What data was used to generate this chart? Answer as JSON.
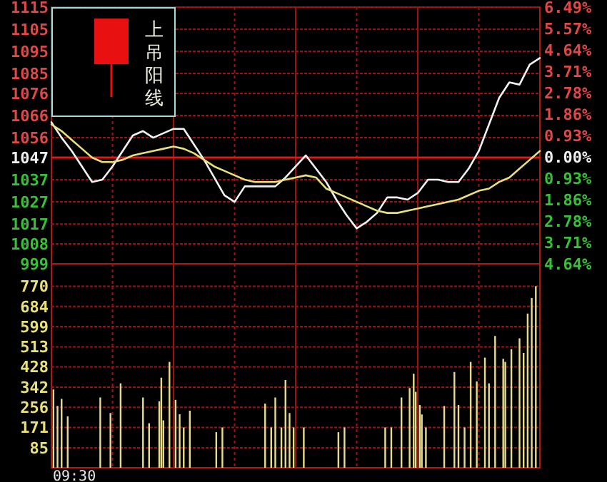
{
  "chart_data": [
    {
      "type": "line",
      "categories": [
        null,
        null,
        null,
        null,
        null,
        null,
        null,
        null,
        null,
        null,
        null,
        null,
        null,
        null,
        null,
        null,
        null,
        null,
        null,
        null,
        null,
        null,
        null,
        null,
        null,
        null,
        null,
        null,
        null,
        null,
        null,
        null,
        null,
        null,
        null,
        null,
        null,
        null,
        null,
        null,
        null,
        null,
        null,
        null,
        null,
        null,
        null,
        null,
        null
      ],
      "ylim": [
        999,
        1115
      ],
      "yticks": [
        1115,
        1105,
        1095,
        1085,
        1076,
        1066,
        1056,
        1047,
        1037,
        1027,
        1017,
        1008,
        999
      ],
      "y2lim": [
        -4.64,
        6.49
      ],
      "y2ticks": [
        {
          "value": 6.49,
          "label": "6.49%"
        },
        {
          "value": 5.57,
          "label": "5.57%"
        },
        {
          "value": 4.64,
          "label": "4.64%"
        },
        {
          "value": 3.71,
          "label": "3.71%"
        },
        {
          "value": 2.78,
          "label": "2.78%"
        },
        {
          "value": 1.86,
          "label": "1.86%"
        },
        {
          "value": 0.93,
          "label": "0.93%"
        },
        {
          "value": 0,
          "label": "0.00%"
        },
        {
          "value": -0.93,
          "label": "0.93%"
        },
        {
          "value": -1.86,
          "label": "1.86%"
        },
        {
          "value": -2.78,
          "label": "2.78%"
        },
        {
          "value": -3.71,
          "label": "3.71%"
        },
        {
          "value": -4.64,
          "label": "4.64%"
        }
      ],
      "grid": true,
      "ref_lines": [
        {
          "axis": "y",
          "value": 1047,
          "color": "#e01818"
        }
      ],
      "annotations": [
        "上吊阳线"
      ],
      "series": [
        {
          "color": "#f2f2f2",
          "values": [
            1063,
            1056,
            1050,
            1043,
            1036,
            1037,
            1043,
            1050,
            1057,
            1059,
            1056,
            1058,
            1060,
            1060,
            1053,
            1046,
            1038,
            1030,
            1027,
            1034,
            1034,
            1034,
            1034,
            1038,
            1043,
            1048,
            1042,
            1036,
            1028,
            1021,
            1015,
            1018,
            1022,
            1029,
            1029,
            1028,
            1031,
            1037,
            1037,
            1036,
            1036,
            1042,
            1050,
            1062,
            1074,
            1081,
            1080,
            1089,
            1092
          ]
        },
        {
          "color": "#e8e07a",
          "values": [
            1062,
            1059,
            1055,
            1051,
            1047,
            1045,
            1045,
            1046,
            1048,
            1049,
            1050,
            1051,
            1052,
            1051,
            1049,
            1046,
            1043,
            1041,
            1039,
            1037,
            1036,
            1036,
            1036,
            1037,
            1038,
            1039,
            1038,
            1033,
            1031,
            1029,
            1027,
            1025,
            1023,
            1022,
            1022,
            1023,
            1024,
            1025,
            1026,
            1027,
            1028,
            1030,
            1032,
            1033,
            1036,
            1038,
            1042,
            1046,
            1050
          ]
        }
      ]
    },
    {
      "type": "bar",
      "categories": [
        null,
        null,
        null,
        null,
        null,
        null,
        null,
        null,
        null,
        null,
        null,
        null,
        null,
        null,
        null,
        null,
        null,
        null,
        null,
        null,
        null,
        null,
        null,
        null,
        null,
        null,
        null,
        null,
        null,
        null,
        null,
        null,
        null,
        null,
        null,
        null,
        null,
        null,
        null,
        null,
        null,
        null,
        null,
        null,
        null,
        null,
        null,
        null,
        null,
        null,
        null,
        null,
        null,
        null,
        null,
        null,
        null,
        null,
        null,
        null,
        null,
        null,
        null,
        null,
        null,
        null,
        null,
        null,
        null,
        null,
        null,
        null,
        null,
        null,
        null,
        null,
        null,
        null,
        null,
        null,
        null,
        null,
        null,
        null,
        null,
        null,
        null,
        null,
        null,
        null,
        null,
        null,
        null,
        null,
        null,
        null,
        null,
        null,
        null,
        null,
        null,
        null,
        null,
        null,
        null,
        null,
        null,
        null,
        null,
        null,
        null,
        null,
        null,
        null,
        null,
        null,
        null,
        null,
        null,
        null,
        null,
        null,
        null,
        null,
        null,
        null,
        null,
        null,
        null,
        null,
        null,
        null,
        null,
        null,
        null,
        null,
        null,
        null,
        null,
        null,
        null,
        null,
        null,
        null,
        null,
        null,
        null,
        null,
        null,
        null,
        null,
        null,
        null,
        null,
        null,
        null,
        null,
        null,
        null,
        null,
        null,
        null,
        null,
        null,
        null,
        null,
        null,
        null,
        null,
        null,
        null,
        null,
        null,
        null,
        null,
        null,
        null,
        null,
        null,
        null,
        null,
        null,
        null,
        null,
        null,
        null,
        null,
        null,
        null,
        null,
        null,
        null,
        null,
        null,
        null,
        null,
        null,
        null,
        null,
        null,
        null,
        null,
        null,
        null,
        null,
        null,
        null,
        null,
        null,
        null,
        null,
        null,
        null,
        null,
        null,
        null,
        null,
        null,
        null,
        null,
        null,
        null,
        null,
        null,
        null,
        null,
        null,
        null,
        null,
        null,
        null,
        null,
        null,
        null,
        null,
        null,
        null,
        null,
        null,
        null,
        null
      ],
      "ylim": [
        0,
        865
      ],
      "yticks": [
        770,
        684,
        599,
        513,
        428,
        342,
        256,
        171,
        85
      ],
      "grid": true,
      "color": "#e6dc8c",
      "annotations": [
        "09:30"
      ],
      "values": [
        null,
        332,
        null,
        262,
        null,
        292,
        null,
        null,
        218,
        null,
        null,
        null,
        null,
        null,
        null,
        null,
        null,
        null,
        null,
        null,
        null,
        null,
        null,
        null,
        298,
        null,
        null,
        null,
        null,
        232,
        null,
        null,
        null,
        null,
        358,
        null,
        null,
        null,
        null,
        null,
        null,
        null,
        null,
        null,
        null,
        298,
        null,
        null,
        189,
        null,
        null,
        null,
        null,
        282,
        382,
        201,
        null,
        null,
        449,
        null,
        null,
        288,
        null,
        227,
        null,
        171,
        null,
        null,
        242,
        null,
        null,
        null,
        null,
        null,
        null,
        null,
        null,
        null,
        null,
        null,
        null,
        151,
        null,
        null,
        171,
        null,
        null,
        null,
        null,
        null,
        null,
        null,
        null,
        null,
        null,
        null,
        null,
        null,
        null,
        null,
        null,
        null,
        null,
        null,
        null,
        272,
        null,
        null,
        171,
        null,
        298,
        null,
        null,
        171,
        null,
        372,
        null,
        232,
        null,
        171,
        null,
        null,
        null,
        null,
        171,
        null,
        null,
        null,
        null,
        null,
        null,
        null,
        null,
        null,
        null,
        null,
        null,
        null,
        null,
        null,
        null,
        151,
        null,
        null,
        171,
        null,
        null,
        null,
        null,
        null,
        null,
        null,
        null,
        null,
        null,
        null,
        null,
        null,
        null,
        null,
        null,
        null,
        null,
        null,
        171,
        null,
        null,
        171,
        null,
        null,
        null,
        null,
        298,
        null,
        null,
        null,
        338,
        null,
        399,
        322,
        null,
        266,
        226,
        null,
        171,
        null,
        null,
        null,
        null,
        null,
        null,
        null,
        null,
        262,
        null,
        null,
        null,
        null,
        406,
        null,
        266,
        null,
        null,
        171,
        null,
        null,
        449,
        null,
        null,
        366,
        null,
        null,
        null,
        467,
        null,
        358,
        null,
        null,
        559,
        null,
        null,
        null,
        462,
        449,
        null,
        null,
        503,
        null,
        null,
        null,
        549,
        null,
        487,
        null,
        654,
        null,
        720,
        null,
        770,
        null,
        null
      ]
    }
  ]
}
